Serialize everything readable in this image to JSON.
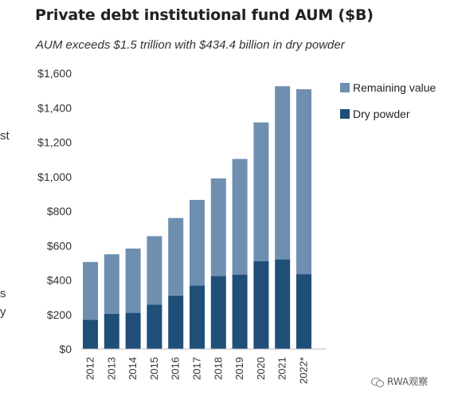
{
  "chart_data": {
    "type": "bar",
    "stacked": true,
    "title": "Private debt institutional fund AUM ($B)",
    "subtitle": "AUM exceeds $1.5 trillion with $434.4 billion in dry powder",
    "categories": [
      "2012",
      "2013",
      "2014",
      "2015",
      "2016",
      "2017",
      "2018",
      "2019",
      "2020",
      "2021",
      "2022*"
    ],
    "series": [
      {
        "name": "Dry powder",
        "color": "#1f4e79",
        "values": [
          170,
          205,
          210,
          258,
          310,
          368,
          424,
          432,
          510,
          520,
          434.4
        ]
      },
      {
        "name": "Remaining value",
        "color": "#6f8fb1",
        "values": [
          335,
          345,
          373,
          397,
          450,
          497,
          566,
          671,
          805,
          1005,
          1073
        ]
      }
    ],
    "y_ticks": [
      "$0",
      "$200",
      "$400",
      "$600",
      "$800",
      "$1,000",
      "$1,200",
      "$1,400",
      "$1,600"
    ],
    "ylim": [
      0,
      1600
    ],
    "grid": false,
    "legend_position": "top-right"
  },
  "legend": {
    "remaining_label": "Remaining value",
    "dry_label": "Dry powder"
  },
  "edge_fragments": [
    "st",
    "s",
    "y"
  ],
  "watermark": {
    "text": "RWA观察"
  }
}
